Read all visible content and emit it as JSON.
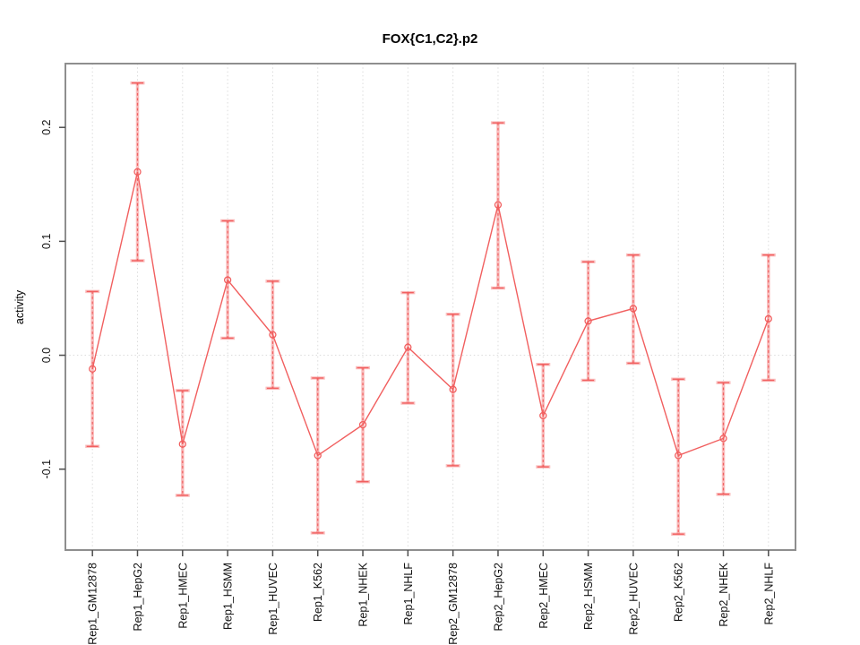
{
  "window": {
    "background": "#ffffff"
  },
  "chart_data": {
    "type": "line",
    "title": "FOX{C1,C2}.p2",
    "ylabel": "activity",
    "xlabel": "",
    "legend": "none",
    "grid": "dotted vertical gridline at each category; dotted horizontal line at y=0",
    "categories": [
      "Rep1_GM12878",
      "Rep1_HepG2",
      "Rep1_HMEC",
      "Rep1_HSMM",
      "Rep1_HUVEC",
      "Rep1_K562",
      "Rep1_NHEK",
      "Rep1_NHLF",
      "Rep2_GM12878",
      "Rep2_HepG2",
      "Rep2_HMEC",
      "Rep2_HSMM",
      "Rep2_HUVEC",
      "Rep2_K562",
      "Rep2_NHEK",
      "Rep2_NHLF"
    ],
    "series": [
      {
        "name": "activity",
        "marker": "open-circle",
        "values": [
          -0.012,
          0.161,
          -0.078,
          0.066,
          0.018,
          -0.088,
          -0.061,
          0.007,
          -0.03,
          0.132,
          -0.053,
          0.03,
          0.041,
          -0.088,
          -0.073,
          0.032
        ],
        "error_high": [
          0.056,
          0.239,
          -0.031,
          0.118,
          0.065,
          -0.02,
          -0.011,
          0.055,
          0.036,
          0.204,
          -0.008,
          0.082,
          0.088,
          -0.021,
          -0.024,
          0.088
        ],
        "error_low": [
          -0.08,
          0.083,
          -0.123,
          0.015,
          -0.029,
          -0.156,
          -0.111,
          -0.042,
          -0.097,
          0.059,
          -0.098,
          -0.022,
          -0.007,
          -0.157,
          -0.122,
          -0.022
        ]
      }
    ],
    "yticks": [
      -0.1,
      0.0,
      0.1,
      0.2
    ],
    "ytick_labels": [
      "-0.1",
      "0.0",
      "0.1",
      "0.2"
    ],
    "ylim": [
      -0.171,
      0.256
    ],
    "colors": {
      "series_line": "#f15f5f",
      "error_bar_light": "rgba(243,100,100,0.42)",
      "gridline": "#dcdcdc",
      "plot_border": "#8e8e8e",
      "tick_mark": "#4d4d4d",
      "text": "#111111"
    }
  }
}
